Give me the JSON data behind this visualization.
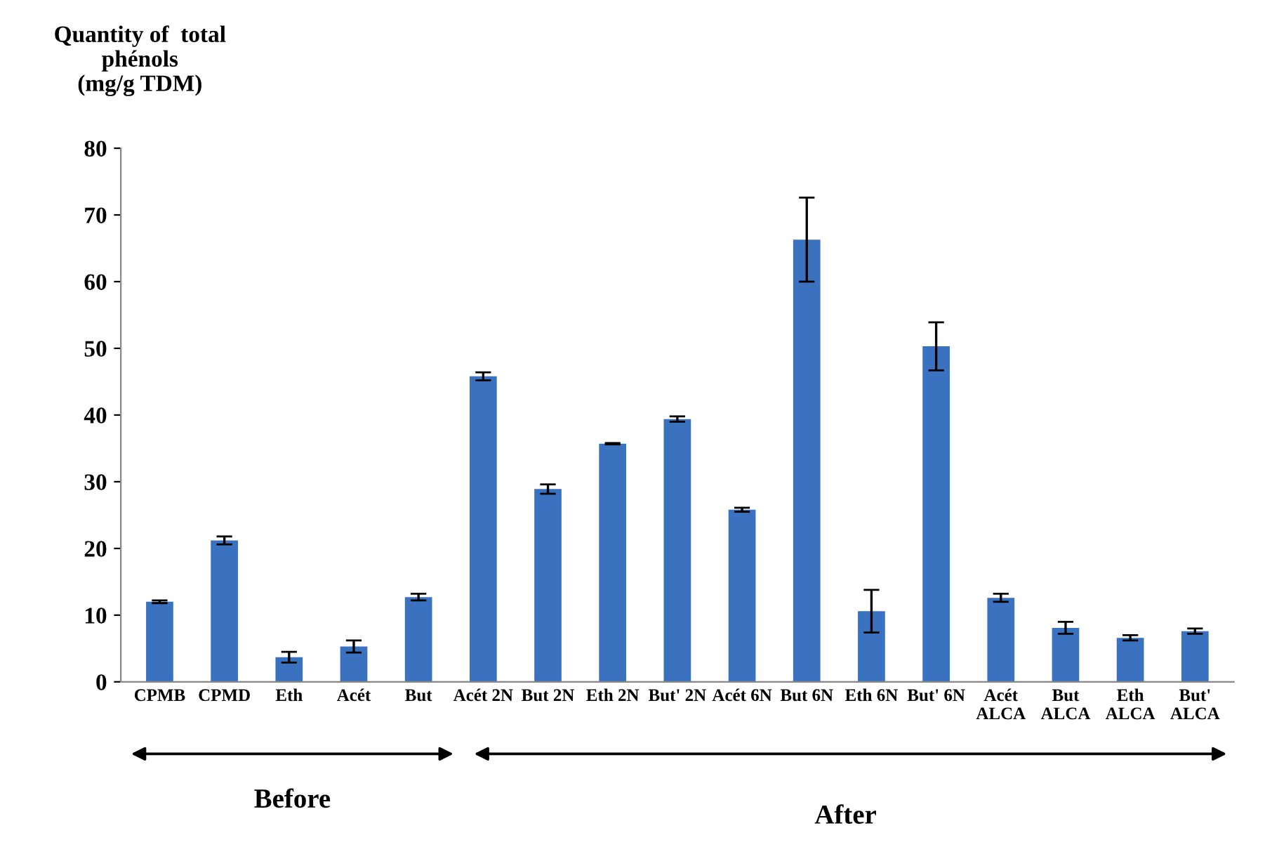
{
  "chart_data": {
    "type": "bar",
    "ylabel": "Quantity of  total\nphénols\n(mg/g TDM)",
    "categories": [
      "CPMB",
      "CPMD",
      "Eth",
      "Acét",
      "But",
      "Acét 2N",
      "But 2N",
      "Eth 2N",
      "But' 2N",
      "Acét 6N",
      "But 6N",
      "Eth 6N",
      "But' 6N",
      "Acét\nALCA",
      "But\nALCA",
      "Eth\nALCA",
      "But'\nALCA"
    ],
    "values": [
      12.0,
      21.2,
      3.7,
      5.3,
      12.7,
      45.8,
      28.9,
      35.7,
      39.4,
      25.8,
      66.3,
      10.6,
      50.3,
      12.6,
      8.1,
      6.6,
      7.6
    ],
    "errors": [
      0.2,
      0.6,
      0.8,
      0.9,
      0.5,
      0.6,
      0.7,
      0.1,
      0.4,
      0.3,
      6.3,
      3.2,
      3.6,
      0.6,
      0.9,
      0.4,
      0.4
    ],
    "color": "#3a72c0",
    "ylim": [
      0,
      80
    ],
    "yticks": [
      0,
      10,
      20,
      30,
      40,
      50,
      60,
      70,
      80
    ],
    "grid": false,
    "annotations": [
      "Before",
      "After"
    ]
  }
}
